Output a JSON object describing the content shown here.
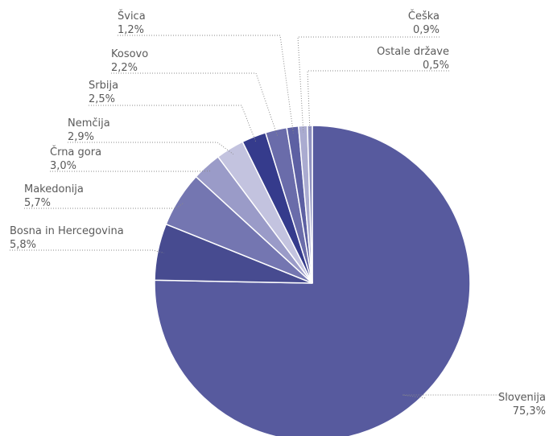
{
  "chart_data": {
    "type": "pie",
    "start_angle_deg": 0,
    "direction": "clockwise",
    "slices": [
      {
        "label": "Slovenija",
        "value": 75.3,
        "value_label": "75,3%",
        "color": "#575a9e"
      },
      {
        "label": "Bosna in Hercegovina",
        "value": 5.8,
        "value_label": "5,8%",
        "color": "#474b90"
      },
      {
        "label": "Makedonija",
        "value": 5.7,
        "value_label": "5,7%",
        "color": "#7476b1"
      },
      {
        "label": "Črna gora",
        "value": 3.0,
        "value_label": "3,0%",
        "color": "#9a9bc8"
      },
      {
        "label": "Nemčija",
        "value": 2.9,
        "value_label": "2,9%",
        "color": "#c3c3df"
      },
      {
        "label": "Srbija",
        "value": 2.5,
        "value_label": "2,5%",
        "color": "#353b8c"
      },
      {
        "label": "Kosovo",
        "value": 2.2,
        "value_label": "2,2%",
        "color": "#6a6caa"
      },
      {
        "label": "Švica",
        "value": 1.2,
        "value_label": "1,2%",
        "color": "#5d60a3"
      },
      {
        "label": "Češka",
        "value": 0.9,
        "value_label": "0,9%",
        "color": "#aaabd0"
      },
      {
        "label": "Ostale države",
        "value": 0.5,
        "value_label": "0,5%",
        "color": "#8f91c1"
      }
    ]
  }
}
